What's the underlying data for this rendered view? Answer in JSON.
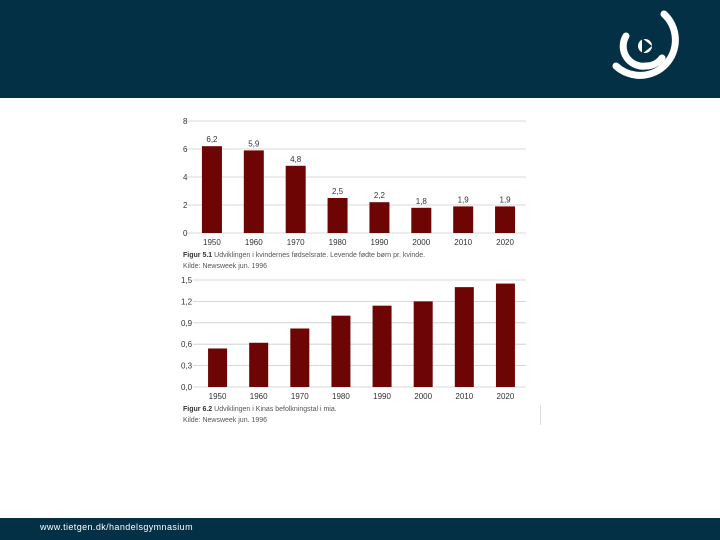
{
  "colors": {
    "header": "#033045",
    "bar": "#6e0505",
    "grid": "#cccccc",
    "logo": "#ffffff"
  },
  "icons": {
    "logo": "tietgen-logo-icon"
  },
  "footer": {
    "url": "www.tietgen.dk/handelsgymnasium"
  },
  "chart_data": [
    {
      "type": "bar",
      "categories": [
        "1950",
        "1960",
        "1970",
        "1980",
        "1990",
        "2000",
        "2010",
        "2020"
      ],
      "values": [
        6.2,
        5.9,
        4.8,
        2.5,
        2.2,
        1.8,
        1.9,
        1.9
      ],
      "data_labels": [
        "6,2",
        "5,9",
        "4,8",
        "2,5",
        "2,2",
        "1,8",
        "1,9",
        "1,9"
      ],
      "yticks": [
        "0",
        "2",
        "4",
        "6",
        "8"
      ],
      "ytick_values": [
        0,
        2,
        4,
        6,
        8
      ],
      "ylim": [
        0,
        8
      ],
      "grid": true,
      "caption_label": "Figur 5.1",
      "caption_text": "Udviklingen i kvindernes fødselsrate. Levende fødte børn pr. kvinde.",
      "source": "Kilde: Newsweek jun. 1996"
    },
    {
      "type": "bar",
      "categories": [
        "1950",
        "1960",
        "1970",
        "1980",
        "1990",
        "2000",
        "2010",
        "2020"
      ],
      "values": [
        0.54,
        0.62,
        0.82,
        1.0,
        1.14,
        1.2,
        1.4,
        1.45
      ],
      "yticks": [
        "0,0",
        "0,3",
        "0,6",
        "0,9",
        "1,2",
        "1,5"
      ],
      "ytick_values": [
        0,
        0.3,
        0.6,
        0.9,
        1.2,
        1.5
      ],
      "ylim": [
        0,
        1.5
      ],
      "grid": true,
      "caption_label": "Figur 6.2",
      "caption_text": "Udviklingen i Kinas befolkningstal i mia.",
      "source": "Kilde: Newsweek jun. 1996"
    }
  ]
}
